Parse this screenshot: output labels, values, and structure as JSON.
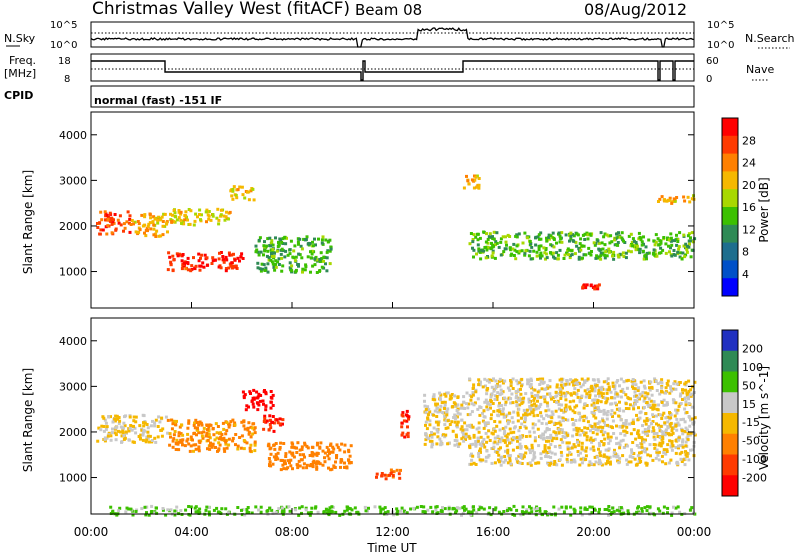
{
  "header": {
    "title": "Christmas Valley West (fitACF)",
    "beam": "Beam 08",
    "date": "08/Aug/2012"
  },
  "top_panels": {
    "nsky_label": "N.Sky",
    "nsky_ticks": [
      "10^5",
      "10^0"
    ],
    "nsearch_label": "N.Search",
    "nsearch_ticks": [
      "10^5",
      "10^0"
    ],
    "freq_label": "Freq.",
    "freq_unit": "[MHz]",
    "freq_ticks": [
      "18",
      "8"
    ],
    "nave_label": "Nave",
    "nave_ticks": [
      "60",
      "0"
    ],
    "cpid_label": "CPID",
    "cpid_text": "normal (fast) -151 IF"
  },
  "x_axis": {
    "label": "Time UT",
    "ticks": [
      "00:00",
      "04:00",
      "08:00",
      "12:00",
      "16:00",
      "20:00",
      "00:00"
    ]
  },
  "power_scale": {
    "label": "Power [dB]",
    "ticks": [
      "28",
      "24",
      "20",
      "16",
      "12",
      "8",
      "4"
    ],
    "colors": [
      "#ff0000",
      "#ff3a00",
      "#ff8000",
      "#f5b800",
      "#a8d800",
      "#3cc000",
      "#2f8a55",
      "#1e6e8e",
      "#0050c8",
      "#0000ff"
    ]
  },
  "velocity_scale": {
    "label": "Velocity [m s^-1]",
    "ticks": [
      "200",
      "100",
      "50",
      "15",
      "-15",
      "-50",
      "-100",
      "-200"
    ],
    "colors": [
      "#2030c0",
      "#2f8a55",
      "#3cc000",
      "#c8c8c8",
      "#f5b800",
      "#ff8000",
      "#ff3a00",
      "#ff0000"
    ]
  },
  "chart_data": [
    {
      "type": "heatmap",
      "name": "Power",
      "ylabel": "Slant Range [km]",
      "xlabel": "",
      "y_ticks": [
        1000,
        2000,
        3000,
        4000
      ],
      "ylim": [
        200,
        4500
      ],
      "xlim_hours": [
        0,
        24
      ],
      "features": [
        {
          "t": [
            0.2,
            1.5
          ],
          "range": [
            1850,
            2350
          ],
          "power_db": 27
        },
        {
          "t": [
            1.5,
            3.0
          ],
          "range": [
            1800,
            2300
          ],
          "power_db": 22
        },
        {
          "t": [
            3.0,
            6.0
          ],
          "range": [
            1050,
            1450
          ],
          "power_db": 28
        },
        {
          "t": [
            3.0,
            5.5
          ],
          "range": [
            2050,
            2400
          ],
          "power_db": 20
        },
        {
          "t": [
            5.5,
            6.5
          ],
          "range": [
            2600,
            2900
          ],
          "power_db": 22
        },
        {
          "t": [
            6.5,
            9.5
          ],
          "range": [
            1000,
            1800
          ],
          "power_db": 14
        },
        {
          "t": [
            14.8,
            15.4
          ],
          "range": [
            2850,
            3150
          ],
          "power_db": 22
        },
        {
          "t": [
            15.0,
            24.0
          ],
          "range": [
            1300,
            1900
          ],
          "power_db": 15
        },
        {
          "t": [
            19.5,
            20.2
          ],
          "range": [
            650,
            750
          ],
          "power_db": 28
        },
        {
          "t": [
            22.5,
            24.0
          ],
          "range": [
            2500,
            2700
          ],
          "power_db": 22
        }
      ]
    },
    {
      "type": "heatmap",
      "name": "Velocity",
      "ylabel": "Slant Range [km]",
      "xlabel": "Time UT",
      "y_ticks": [
        1000,
        2000,
        3000,
        4000
      ],
      "ylim": [
        200,
        4500
      ],
      "xlim_hours": [
        0,
        24
      ],
      "features": [
        {
          "t": [
            0.2,
            3.0
          ],
          "range": [
            1800,
            2400
          ],
          "velocity": 0
        },
        {
          "t": [
            3.0,
            6.5
          ],
          "range": [
            1600,
            2300
          ],
          "velocity": -40
        },
        {
          "t": [
            6.0,
            7.2
          ],
          "range": [
            2500,
            2950
          ],
          "velocity": -200
        },
        {
          "t": [
            6.8,
            7.6
          ],
          "range": [
            2000,
            2400
          ],
          "velocity": -150
        },
        {
          "t": [
            7.0,
            10.3
          ],
          "range": [
            1200,
            1800
          ],
          "velocity": -60
        },
        {
          "t": [
            11.3,
            12.3
          ],
          "range": [
            1000,
            1200
          ],
          "velocity": -80
        },
        {
          "t": [
            12.3,
            12.6
          ],
          "range": [
            1900,
            2500
          ],
          "velocity": -150
        },
        {
          "t": [
            13.2,
            15.0
          ],
          "range": [
            1700,
            2900
          ],
          "velocity": 0
        },
        {
          "t": [
            15.0,
            24.0
          ],
          "range": [
            1300,
            3200
          ],
          "velocity": 0
        },
        {
          "t": [
            0.5,
            24.0
          ],
          "range": [
            200,
            400
          ],
          "velocity": 40
        }
      ]
    }
  ]
}
